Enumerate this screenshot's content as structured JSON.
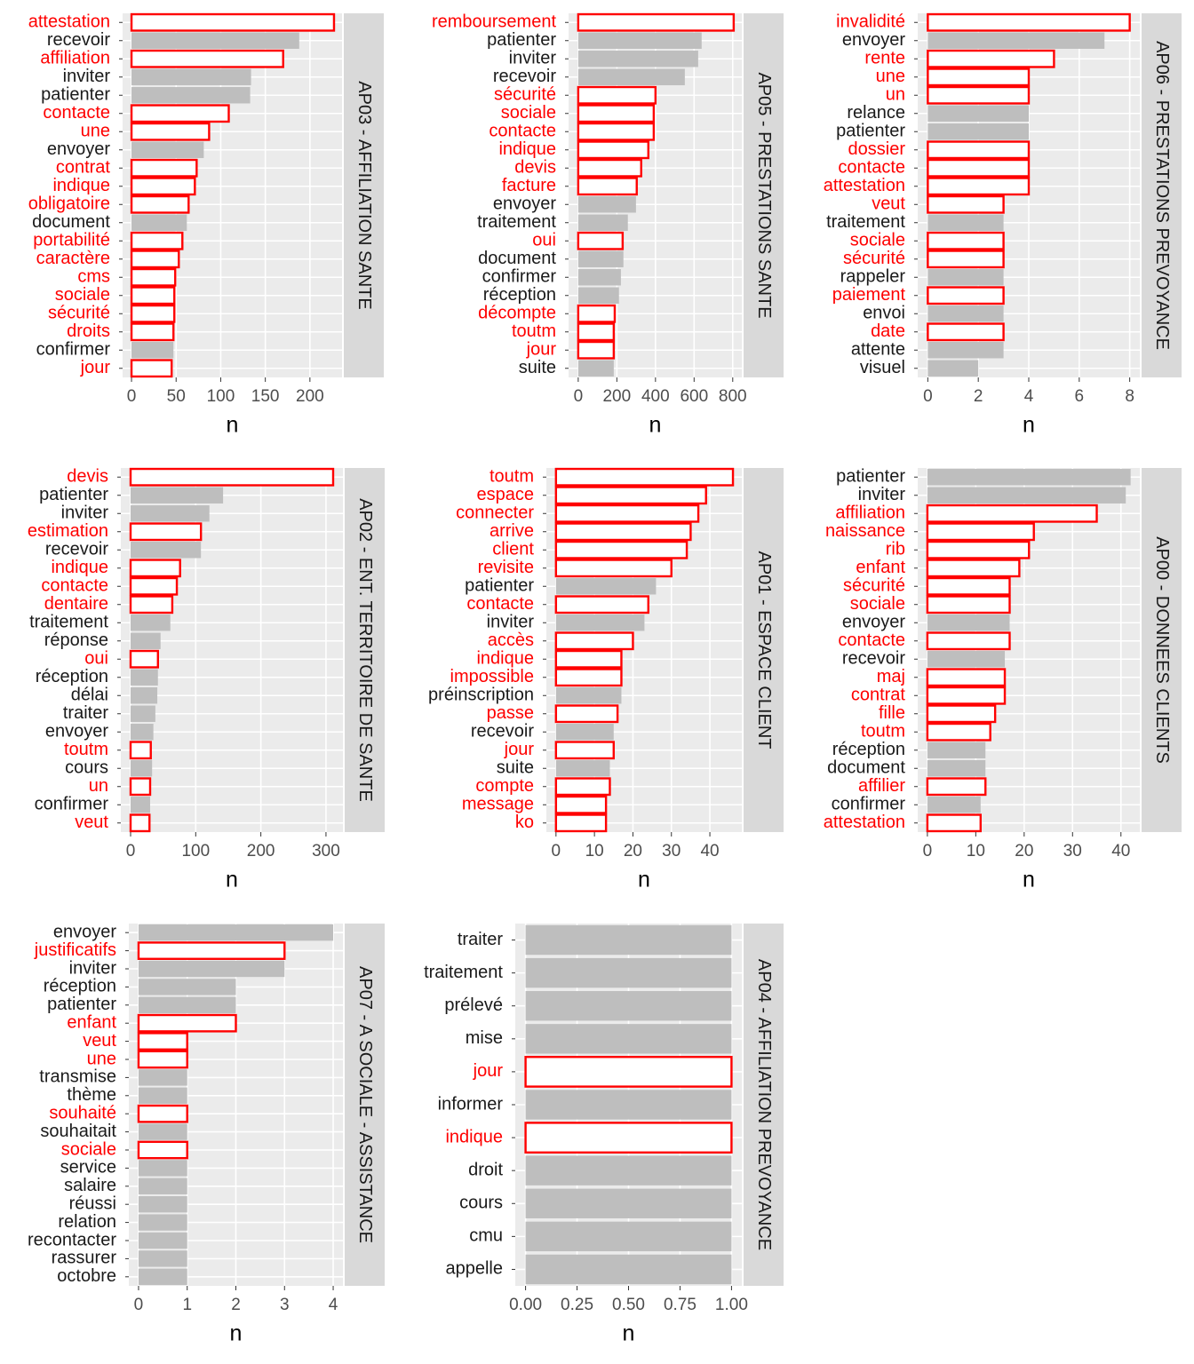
{
  "chart_data": [
    {
      "type": "bar",
      "orientation": "horizontal",
      "title": "AP03 - AFFILIATION SANTE",
      "x_label": "n",
      "color": "#bebebe",
      "highlight_color": "#ff0000",
      "categories": [
        "attestation",
        "recevoir",
        "affiliation",
        "inviter",
        "patienter",
        "contacte",
        "une",
        "envoyer",
        "contrat",
        "indique",
        "obligatoire",
        "document",
        "portabilité",
        "caractère",
        "cms",
        "sociale",
        "sécurité",
        "droits",
        "confirmer",
        "jour"
      ],
      "values": [
        227,
        188,
        170,
        134,
        133,
        109,
        87,
        81,
        73,
        71,
        64,
        62,
        57,
        53,
        49,
        48,
        48,
        47,
        47,
        45
      ],
      "highlighted": [
        true,
        false,
        true,
        false,
        false,
        true,
        true,
        false,
        true,
        true,
        true,
        false,
        true,
        true,
        true,
        true,
        true,
        true,
        false,
        true
      ],
      "xlim": [
        -10,
        236
      ],
      "xticks": [
        0,
        50,
        100,
        150,
        200
      ]
    },
    {
      "type": "bar",
      "orientation": "horizontal",
      "title": "AP05 - PRESTATIONS SANTE",
      "x_label": "n",
      "color": "#bebebe",
      "highlight_color": "#ff0000",
      "categories": [
        "remboursement",
        "patienter",
        "inviter",
        "recevoir",
        "sécurité",
        "sociale",
        "contacte",
        "indique",
        "devis",
        "facture",
        "envoyer",
        "traitement",
        "oui",
        "document",
        "confirmer",
        "réception",
        "décompte",
        "toutm",
        "jour",
        "suite"
      ],
      "values": [
        805,
        639,
        621,
        552,
        400,
        391,
        391,
        363,
        326,
        303,
        299,
        257,
        230,
        234,
        221,
        211,
        189,
        184,
        184,
        184
      ],
      "highlighted": [
        true,
        false,
        false,
        false,
        true,
        true,
        true,
        true,
        true,
        true,
        false,
        false,
        true,
        false,
        false,
        false,
        true,
        true,
        true,
        false
      ],
      "xlim": [
        -50,
        847
      ],
      "xticks": [
        0,
        200,
        400,
        600,
        800
      ]
    },
    {
      "type": "bar",
      "orientation": "horizontal",
      "title": "AP06 - PRESTATIONS PREVOYANCE",
      "x_label": "n",
      "color": "#bebebe",
      "highlight_color": "#ff0000",
      "categories": [
        "invalidité",
        "envoyer",
        "rente",
        "une",
        "un",
        "relance",
        "patienter",
        "dossier",
        "contacte",
        "attestation",
        "veut",
        "traitement",
        "sociale",
        "sécurité",
        "rappeler",
        "paiement",
        "envoi",
        "date",
        "attente",
        "visuel"
      ],
      "values": [
        8,
        7,
        5,
        4,
        4,
        4,
        4,
        4,
        4,
        4,
        3,
        3,
        3,
        3,
        3,
        3,
        3,
        3,
        3,
        2
      ],
      "highlighted": [
        true,
        false,
        true,
        true,
        true,
        false,
        false,
        true,
        true,
        true,
        true,
        false,
        true,
        true,
        false,
        true,
        false,
        true,
        false,
        false
      ],
      "xlim": [
        -0.4,
        8.4
      ],
      "xticks": [
        0,
        2,
        4,
        6,
        8
      ]
    },
    {
      "type": "bar",
      "orientation": "horizontal",
      "title": "AP02 - ENT. TERRITOIRE DE SANTE",
      "x_label": "n",
      "color": "#bebebe",
      "highlight_color": "#ff0000",
      "categories": [
        "devis",
        "patienter",
        "inviter",
        "estimation",
        "recevoir",
        "indique",
        "contacte",
        "dentaire",
        "traitement",
        "réponse",
        "oui",
        "réception",
        "délai",
        "traiter",
        "envoyer",
        "toutm",
        "cours",
        "un",
        "confirmer",
        "veut"
      ],
      "values": [
        311,
        142,
        121,
        108,
        108,
        76,
        71,
        64,
        61,
        46,
        42,
        42,
        41,
        38,
        35,
        31,
        33,
        30,
        30,
        29
      ],
      "highlighted": [
        true,
        false,
        false,
        true,
        false,
        true,
        true,
        true,
        false,
        false,
        true,
        false,
        false,
        false,
        false,
        true,
        false,
        true,
        false,
        true
      ],
      "xlim": [
        -15,
        326
      ],
      "xticks": [
        0,
        100,
        200,
        300
      ]
    },
    {
      "type": "bar",
      "orientation": "horizontal",
      "title": "AP01 - ESPACE CLIENT",
      "x_label": "n",
      "color": "#bebebe",
      "highlight_color": "#ff0000",
      "categories": [
        "toutm",
        "espace",
        "connecter",
        "arrive",
        "client",
        "revisite",
        "patienter",
        "contacte",
        "inviter",
        "accès",
        "indique",
        "impossible",
        "préinscription",
        "passe",
        "recevoir",
        "jour",
        "suite",
        "compte",
        "message",
        "ko"
      ],
      "values": [
        46,
        39,
        37,
        35,
        34,
        30,
        26,
        24,
        23,
        20,
        17,
        17,
        17,
        16,
        15,
        15,
        14,
        14,
        13,
        13
      ],
      "highlighted": [
        true,
        true,
        true,
        true,
        true,
        true,
        false,
        true,
        false,
        true,
        true,
        true,
        false,
        true,
        false,
        true,
        false,
        true,
        true,
        true
      ],
      "xlim": [
        -2.5,
        48.3
      ],
      "xticks": [
        0,
        10,
        20,
        30,
        40
      ]
    },
    {
      "type": "bar",
      "orientation": "horizontal",
      "title": "AP00 - DONNEES CLIENTS",
      "x_label": "n",
      "color": "#bebebe",
      "highlight_color": "#ff0000",
      "categories": [
        "patienter",
        "inviter",
        "affiliation",
        "naissance",
        "rib",
        "enfant",
        "sécurité",
        "sociale",
        "envoyer",
        "contacte",
        "recevoir",
        "maj",
        "contrat",
        "fille",
        "toutm",
        "réception",
        "document",
        "affilier",
        "confirmer",
        "attestation"
      ],
      "values": [
        42,
        41,
        35,
        22,
        21,
        19,
        17,
        17,
        17,
        17,
        16,
        16,
        16,
        14,
        13,
        12,
        12,
        12,
        11,
        11
      ],
      "highlighted": [
        false,
        false,
        true,
        true,
        true,
        true,
        true,
        true,
        false,
        true,
        false,
        true,
        true,
        true,
        true,
        false,
        false,
        true,
        false,
        true
      ],
      "xlim": [
        -2,
        43.9
      ],
      "xticks": [
        0,
        10,
        20,
        30,
        40
      ]
    },
    {
      "type": "bar",
      "orientation": "horizontal",
      "title": "AP07 - A SOCIALE - ASSISTANCE",
      "x_label": "n",
      "color": "#bebebe",
      "highlight_color": "#ff0000",
      "categories": [
        "envoyer",
        "justificatifs",
        "inviter",
        "réception",
        "patienter",
        "enfant",
        "veut",
        "une",
        "transmise",
        "thème",
        "souhaité",
        "souhaitait",
        "sociale",
        "service",
        "salaire",
        "réussi",
        "relation",
        "recontacter",
        "rassurer",
        "octobre"
      ],
      "values": [
        4,
        3,
        3,
        2,
        2,
        2,
        1,
        1,
        1,
        1,
        1,
        1,
        1,
        1,
        1,
        1,
        1,
        1,
        1,
        1
      ],
      "highlighted": [
        false,
        true,
        false,
        false,
        false,
        true,
        true,
        true,
        false,
        false,
        true,
        false,
        true,
        false,
        false,
        false,
        false,
        false,
        false,
        false
      ],
      "xlim": [
        -0.2,
        4.2
      ],
      "xticks": [
        0,
        1,
        2,
        3,
        4
      ]
    },
    {
      "type": "bar",
      "orientation": "horizontal",
      "title": "AP04 - AFFILIATION PREVOYANCE",
      "x_label": "n",
      "color": "#bebebe",
      "highlight_color": "#ff0000",
      "categories": [
        "traiter",
        "traitement",
        "prélevé",
        "mise",
        "jour",
        "informer",
        "indique",
        "droit",
        "cours",
        "cmu",
        "appelle"
      ],
      "values": [
        1,
        1,
        1,
        1,
        1,
        1,
        1,
        1,
        1,
        1,
        1
      ],
      "highlighted": [
        false,
        false,
        false,
        false,
        true,
        false,
        true,
        false,
        false,
        false,
        false
      ],
      "xlim": [
        -0.05,
        1.05
      ],
      "xticks": [
        {
          "value": 0,
          "label": "0.00"
        },
        {
          "value": 0.25,
          "label": "0.25"
        },
        {
          "value": 0.5,
          "label": "0.50"
        },
        {
          "value": 0.75,
          "label": "0.75"
        },
        {
          "value": 1,
          "label": "1.00"
        }
      ]
    }
  ]
}
